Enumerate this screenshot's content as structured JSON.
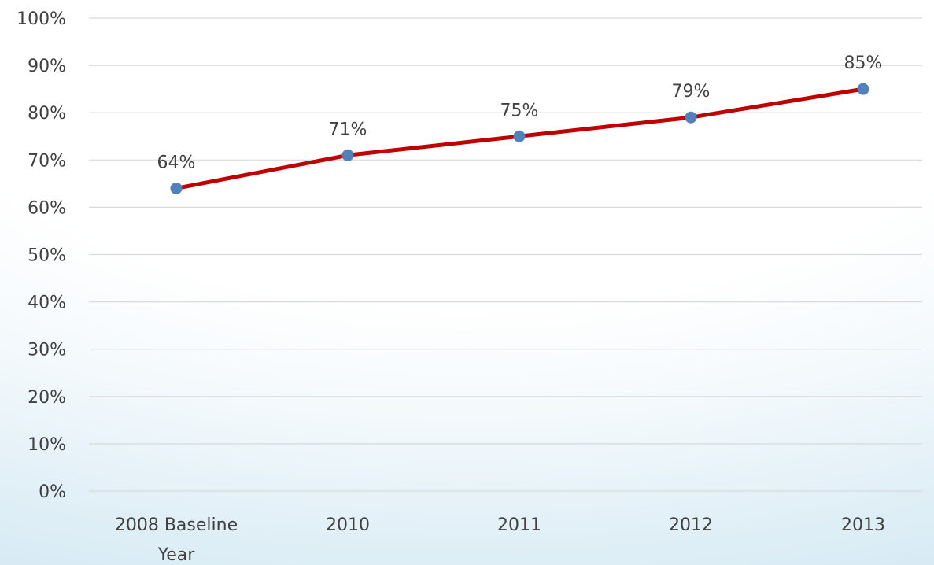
{
  "chart_data": {
    "type": "line",
    "categories": [
      "2008 Baseline Year",
      "2010",
      "2011",
      "2012",
      "2013"
    ],
    "category_lines": [
      [
        "2008 Baseline",
        "Year"
      ],
      [
        "2010"
      ],
      [
        "2011"
      ],
      [
        "2012"
      ],
      [
        "2013"
      ]
    ],
    "values": [
      0.64,
      0.71,
      0.75,
      0.79,
      0.85
    ],
    "data_labels": [
      "64%",
      "71%",
      "75%",
      "79%",
      "85%"
    ],
    "ylim": [
      0,
      1
    ],
    "yticks": [
      0,
      0.1,
      0.2,
      0.3,
      0.4,
      0.5,
      0.6,
      0.7,
      0.8,
      0.9,
      1.0
    ],
    "ytick_labels": [
      "0%",
      "10%",
      "20%",
      "30%",
      "40%",
      "50%",
      "60%",
      "70%",
      "80%",
      "90%",
      "100%"
    ],
    "grid": true,
    "legend": "none",
    "colors": {
      "line": "#C00000",
      "marker": "#4F81BD",
      "grid": "#D9D9D9",
      "text": "#404040"
    }
  }
}
